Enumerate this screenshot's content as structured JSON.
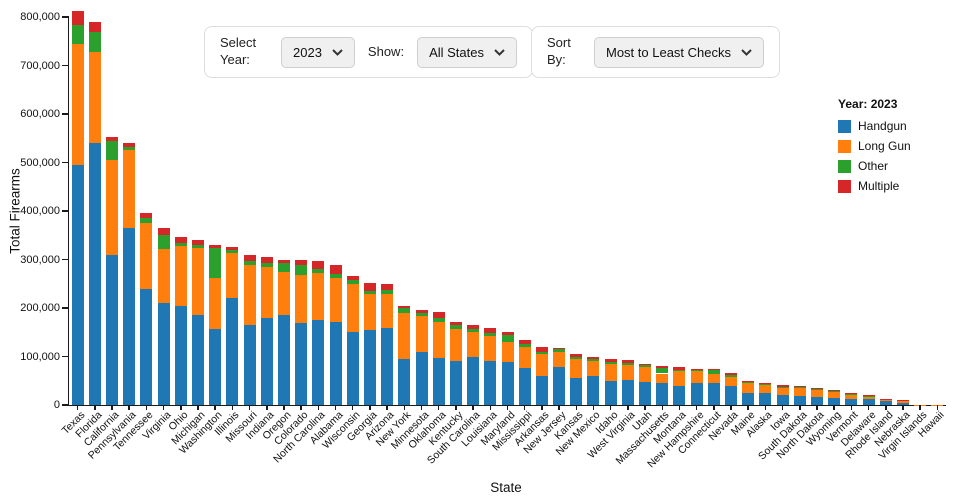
{
  "controls": {
    "select_year_label": "Select Year:",
    "year_value": "2023",
    "show_label": "Show:",
    "show_value": "All States",
    "sort_label": "Sort By:",
    "sort_value": "Most to Least Checks"
  },
  "legend": {
    "title": "Year: 2023",
    "items": [
      {
        "label": "Handgun",
        "color": "#1f77b4"
      },
      {
        "label": "Long Gun",
        "color": "#ff7f0e"
      },
      {
        "label": "Other",
        "color": "#2ca02c"
      },
      {
        "label": "Multiple",
        "color": "#d62728"
      }
    ]
  },
  "chart_data": {
    "type": "bar",
    "stacked": true,
    "title": "",
    "xlabel": "State",
    "ylabel": "Total Firearms",
    "ylim": [
      0,
      800000
    ],
    "ytick_step": 100000,
    "grid": false,
    "legend_position": "right",
    "categories": [
      "Texas",
      "Florida",
      "California",
      "Pennsylvania",
      "Tennessee",
      "Virginia",
      "Ohio",
      "Michigan",
      "Washington",
      "Illinois",
      "Missouri",
      "Indiana",
      "Oregon",
      "Colorado",
      "North Carolina",
      "Alabama",
      "Wisconsin",
      "Georgia",
      "Arizona",
      "New York",
      "Minnesota",
      "Oklahoma",
      "Kentucky",
      "South Carolina",
      "Louisiana",
      "Maryland",
      "Mississippi",
      "Arkansas",
      "New Jersey",
      "Kansas",
      "New Mexico",
      "Idaho",
      "West Virginia",
      "Utah",
      "Massachusetts",
      "Montana",
      "New Hampshire",
      "Connecticut",
      "Nevada",
      "Maine",
      "Alaska",
      "Iowa",
      "South Dakota",
      "North Dakota",
      "Wyoming",
      "Vermont",
      "Delaware",
      "Rhode Island",
      "Nebraska",
      "Virgin Islands",
      "Hawaii"
    ],
    "series": [
      {
        "name": "Handgun",
        "color": "#1f77b4",
        "values": [
          495000,
          540000,
          310000,
          365000,
          240000,
          210000,
          205000,
          185000,
          157000,
          220000,
          165000,
          180000,
          185000,
          170000,
          175000,
          172000,
          150000,
          155000,
          158000,
          95000,
          110000,
          97000,
          90000,
          100000,
          90000,
          88000,
          76000,
          60000,
          78000,
          55000,
          60000,
          50000,
          52000,
          48000,
          45000,
          40000,
          45000,
          45000,
          40000,
          25000,
          24000,
          20000,
          19000,
          17000,
          14000,
          12000,
          12000,
          8000,
          4000,
          500,
          300
        ]
      },
      {
        "name": "Long Gun",
        "color": "#ff7f0e",
        "values": [
          250000,
          188000,
          195000,
          160000,
          135000,
          112000,
          122000,
          138000,
          105000,
          94000,
          124000,
          105000,
          90000,
          98000,
          97000,
          90000,
          100000,
          73000,
          70000,
          95000,
          73000,
          75000,
          67000,
          50000,
          52000,
          42000,
          44000,
          45000,
          32000,
          40000,
          30000,
          35000,
          30000,
          30000,
          20000,
          30000,
          25000,
          18000,
          18000,
          20000,
          17000,
          16000,
          16000,
          14000,
          12000,
          10000,
          6000,
          4000,
          6000,
          300,
          200
        ]
      },
      {
        "name": "Other",
        "color": "#2ca02c",
        "values": [
          38000,
          41000,
          40000,
          8000,
          10000,
          28000,
          8000,
          7000,
          62000,
          5000,
          8000,
          8000,
          18000,
          20000,
          9000,
          8000,
          8000,
          8000,
          10000,
          10000,
          6000,
          7000,
          7000,
          6000,
          6000,
          15000,
          5000,
          5000,
          5000,
          4000,
          4000,
          4000,
          4000,
          4000,
          12000,
          3000,
          3000,
          9000,
          3000,
          2000,
          2000,
          2000,
          2000,
          2000,
          2000,
          1500,
          1000,
          500,
          500,
          100,
          50
        ]
      },
      {
        "name": "Multiple",
        "color": "#d62728",
        "values": [
          30000,
          21000,
          7000,
          7000,
          10000,
          14000,
          12000,
          10000,
          6000,
          6000,
          13000,
          12000,
          7000,
          12000,
          16000,
          18000,
          7000,
          16000,
          12000,
          5000,
          6000,
          13000,
          8000,
          9000,
          10000,
          5000,
          10000,
          10000,
          3000,
          6000,
          6000,
          6000,
          6000,
          3000,
          3000,
          5000,
          2000,
          3000,
          4000,
          3000,
          3000,
          4000,
          3000,
          3000,
          2000,
          1500,
          1000,
          500,
          500,
          100,
          50
        ]
      }
    ]
  }
}
